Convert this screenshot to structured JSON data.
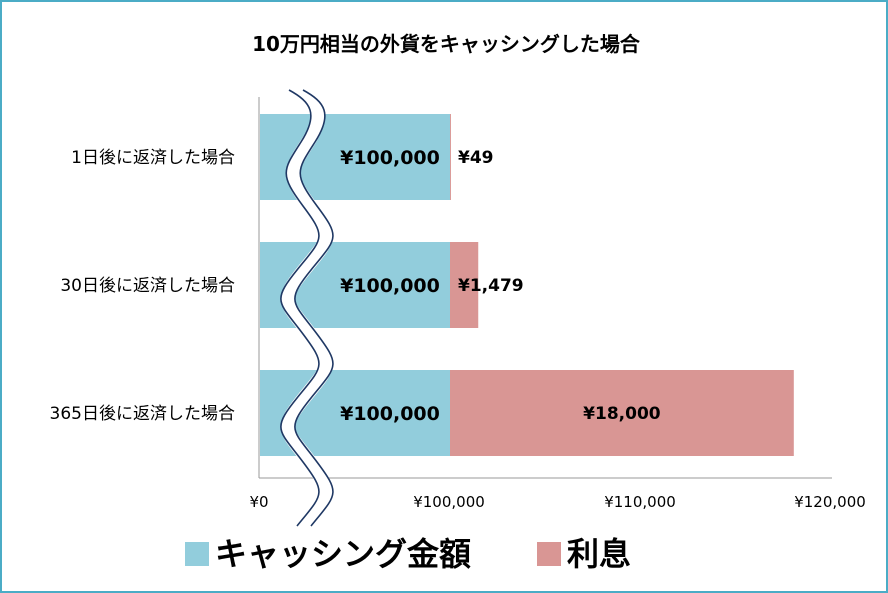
{
  "chart_data": {
    "type": "bar",
    "orientation": "horizontal",
    "stacked": true,
    "title": "10万円相当の外貨をキャッシングした場合",
    "categories": [
      "1日後に返済した場合",
      "30日後に返済した場合",
      "365日後に返済した場合"
    ],
    "series": [
      {
        "name": "キャッシング金額",
        "color": "#92cddc",
        "values": [
          100000,
          100000,
          100000
        ],
        "labels": [
          "¥100,000",
          "¥100,000",
          "¥100,000"
        ]
      },
      {
        "name": "利息",
        "color": "#d99694",
        "values": [
          49,
          1479,
          18000
        ],
        "labels": [
          "¥49",
          "¥1,479",
          "¥18,000"
        ]
      }
    ],
    "x_ticks": [
      "¥0",
      "¥100,000",
      "¥110,000",
      "¥120,000"
    ],
    "x_axis_break": "between ¥0 and ¥100,000",
    "xlim": [
      100000,
      120000
    ],
    "grid": false,
    "legend_position": "bottom"
  }
}
